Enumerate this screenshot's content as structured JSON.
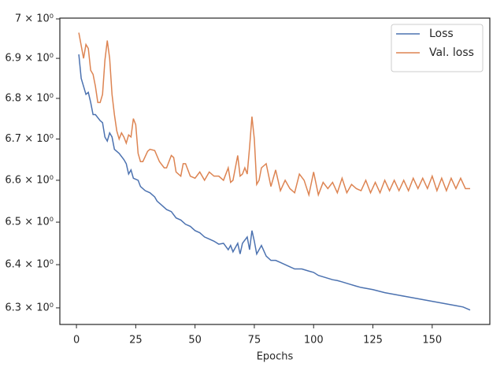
{
  "chart_data": {
    "type": "line",
    "x_label": "Epochs",
    "xlim": [
      -7,
      174.3
    ],
    "xticks": [
      0,
      25,
      50,
      75,
      100,
      125,
      150
    ],
    "ylim": [
      6.262,
      7.002
    ],
    "log_y": true,
    "yticks": [
      {
        "value": 6.3,
        "label": "6.3 × 10⁰"
      },
      {
        "value": 6.4,
        "label": "6.4 × 10⁰"
      },
      {
        "value": 6.5,
        "label": "6.5 × 10⁰"
      },
      {
        "value": 6.6,
        "label": "6.6 × 10⁰"
      },
      {
        "value": 6.7,
        "label": "6.7 × 10⁰"
      },
      {
        "value": 6.8,
        "label": "6.8 × 10⁰"
      },
      {
        "value": 6.9,
        "label": "6.9 × 10⁰"
      },
      {
        "value": 7,
        "label": "7 × 10⁰"
      }
    ],
    "legend": "upper right",
    "series": [
      {
        "name": "Loss",
        "color": "#4c72b0",
        "x": [
          1,
          2,
          4,
          5,
          6,
          7,
          8,
          10,
          11,
          12,
          13,
          14,
          15,
          16,
          18,
          20,
          21,
          22,
          23,
          24,
          26,
          27,
          29,
          31,
          33,
          34,
          36,
          38,
          40,
          42,
          44,
          46,
          48,
          50,
          52,
          54,
          56,
          58,
          60,
          62,
          64,
          65,
          66,
          68,
          69,
          70,
          72,
          73,
          74,
          75,
          76,
          78,
          80,
          82,
          84,
          86,
          88,
          90,
          92,
          95,
          98,
          100,
          102,
          105,
          108,
          110,
          112,
          115,
          118,
          120,
          125,
          130,
          135,
          140,
          145,
          150,
          155,
          160,
          163,
          166
        ],
        "values": [
          6.91,
          6.85,
          6.81,
          6.815,
          6.79,
          6.76,
          6.76,
          6.745,
          6.74,
          6.705,
          6.695,
          6.715,
          6.705,
          6.675,
          6.665,
          6.65,
          6.64,
          6.615,
          6.625,
          6.605,
          6.6,
          6.585,
          6.575,
          6.57,
          6.56,
          6.55,
          6.54,
          6.53,
          6.525,
          6.51,
          6.505,
          6.495,
          6.49,
          6.48,
          6.475,
          6.465,
          6.46,
          6.455,
          6.448,
          6.45,
          6.435,
          6.445,
          6.43,
          6.45,
          6.425,
          6.45,
          6.465,
          6.435,
          6.48,
          6.455,
          6.425,
          6.445,
          6.42,
          6.41,
          6.41,
          6.405,
          6.4,
          6.395,
          6.39,
          6.39,
          6.385,
          6.382,
          6.375,
          6.37,
          6.365,
          6.363,
          6.36,
          6.355,
          6.35,
          6.347,
          6.342,
          6.335,
          6.33,
          6.325,
          6.32,
          6.315,
          6.31,
          6.305,
          6.302,
          6.295
        ]
      },
      {
        "name": "Val. loss",
        "color": "#dd8452",
        "x": [
          1,
          3,
          4,
          5,
          6,
          7,
          8,
          9,
          10,
          11,
          12,
          13,
          14,
          15,
          16,
          17,
          18,
          19,
          20,
          21,
          22,
          23,
          24,
          25,
          26,
          27,
          28,
          30,
          31,
          33,
          35,
          37,
          38,
          40,
          41,
          42,
          44,
          45,
          46,
          48,
          50,
          52,
          54,
          56,
          58,
          60,
          62,
          64,
          65,
          66,
          68,
          69,
          70,
          71,
          72,
          73,
          74,
          75,
          76,
          77,
          78,
          80,
          82,
          84,
          86,
          88,
          90,
          92,
          94,
          96,
          98,
          100,
          102,
          104,
          106,
          108,
          110,
          112,
          114,
          116,
          118,
          120,
          122,
          124,
          126,
          128,
          130,
          132,
          134,
          136,
          138,
          140,
          142,
          144,
          146,
          148,
          150,
          152,
          154,
          156,
          158,
          160,
          162,
          164,
          166
        ],
        "values": [
          6.965,
          6.9,
          6.935,
          6.925,
          6.87,
          6.86,
          6.83,
          6.79,
          6.79,
          6.81,
          6.895,
          6.945,
          6.9,
          6.81,
          6.76,
          6.72,
          6.7,
          6.715,
          6.705,
          6.69,
          6.71,
          6.705,
          6.75,
          6.735,
          6.665,
          6.645,
          6.645,
          6.67,
          6.675,
          6.672,
          6.645,
          6.63,
          6.63,
          6.66,
          6.655,
          6.62,
          6.61,
          6.64,
          6.64,
          6.61,
          6.605,
          6.62,
          6.6,
          6.62,
          6.61,
          6.61,
          6.6,
          6.63,
          6.595,
          6.6,
          6.66,
          6.61,
          6.615,
          6.63,
          6.615,
          6.68,
          6.755,
          6.7,
          6.59,
          6.6,
          6.63,
          6.64,
          6.585,
          6.625,
          6.575,
          6.6,
          6.58,
          6.57,
          6.615,
          6.6,
          6.565,
          6.62,
          6.565,
          6.595,
          6.58,
          6.595,
          6.57,
          6.605,
          6.57,
          6.59,
          6.58,
          6.575,
          6.6,
          6.57,
          6.595,
          6.57,
          6.6,
          6.575,
          6.6,
          6.575,
          6.6,
          6.575,
          6.605,
          6.58,
          6.605,
          6.58,
          6.61,
          6.575,
          6.605,
          6.575,
          6.605,
          6.58,
          6.605,
          6.58,
          6.58
        ]
      }
    ]
  }
}
